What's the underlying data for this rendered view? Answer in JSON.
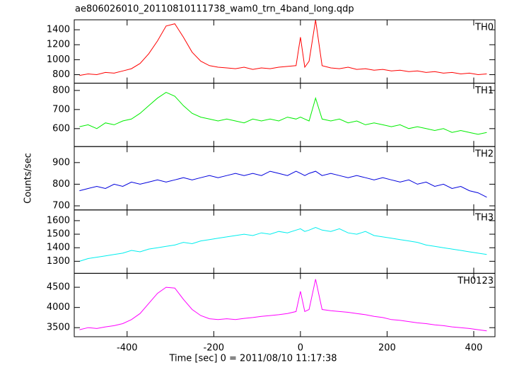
{
  "chart_data": {
    "type": "line",
    "title": "ae806026010_20110810111738_wam0_trn_4band_long.qdp",
    "x_label": "Time [sec] 0 = 2011/08/10 11:17:38",
    "y_label": "Counts/sec",
    "xlim": [
      -522,
      449
    ],
    "xticks": [
      -400,
      -200,
      0,
      200,
      400
    ],
    "x": [
      -510,
      -490,
      -470,
      -450,
      -430,
      -410,
      -390,
      -370,
      -350,
      -330,
      -310,
      -290,
      -270,
      -250,
      -230,
      -210,
      -190,
      -170,
      -150,
      -130,
      -110,
      -90,
      -70,
      -50,
      -30,
      -10,
      0,
      10,
      20,
      35,
      50,
      70,
      90,
      110,
      130,
      150,
      170,
      190,
      210,
      230,
      250,
      270,
      290,
      310,
      330,
      350,
      370,
      390,
      410,
      430
    ],
    "series": [
      {
        "name": "TH0",
        "color": "#ff0000",
        "ylim": [
          686,
          1533
        ],
        "yticks": [
          800,
          1000,
          1200,
          1400
        ],
        "values": [
          790,
          810,
          800,
          830,
          820,
          850,
          880,
          950,
          1080,
          1250,
          1450,
          1480,
          1300,
          1100,
          980,
          920,
          900,
          890,
          880,
          900,
          870,
          890,
          880,
          900,
          910,
          920,
          1300,
          900,
          980,
          1530,
          920,
          890,
          880,
          900,
          870,
          880,
          860,
          870,
          850,
          860,
          840,
          850,
          830,
          840,
          820,
          830,
          810,
          820,
          800,
          810
        ]
      },
      {
        "name": "TH1",
        "color": "#00ee00",
        "ylim": [
          506,
          838
        ],
        "yticks": [
          600,
          700,
          800
        ],
        "values": [
          610,
          620,
          600,
          630,
          620,
          640,
          650,
          680,
          720,
          760,
          790,
          770,
          720,
          680,
          660,
          650,
          640,
          650,
          640,
          630,
          650,
          640,
          650,
          640,
          660,
          650,
          660,
          650,
          640,
          760,
          650,
          640,
          650,
          630,
          640,
          620,
          630,
          620,
          610,
          620,
          600,
          610,
          600,
          590,
          600,
          580,
          590,
          580,
          570,
          580
        ]
      },
      {
        "name": "TH2",
        "color": "#0000dd",
        "ylim": [
          681,
          974
        ],
        "yticks": [
          700,
          800,
          900
        ],
        "values": [
          770,
          780,
          790,
          780,
          800,
          790,
          810,
          800,
          810,
          820,
          810,
          820,
          830,
          820,
          830,
          840,
          830,
          840,
          850,
          840,
          850,
          840,
          860,
          850,
          840,
          860,
          850,
          840,
          850,
          860,
          840,
          850,
          840,
          830,
          840,
          830,
          820,
          830,
          820,
          810,
          820,
          800,
          810,
          790,
          800,
          780,
          790,
          770,
          760,
          740
        ]
      },
      {
        "name": "TH3",
        "color": "#00eeee",
        "ylim": [
          1211,
          1679
        ],
        "yticks": [
          1300,
          1400,
          1500,
          1600
        ],
        "values": [
          1300,
          1320,
          1330,
          1340,
          1350,
          1360,
          1380,
          1370,
          1390,
          1400,
          1410,
          1420,
          1440,
          1430,
          1450,
          1460,
          1470,
          1480,
          1490,
          1500,
          1490,
          1510,
          1500,
          1520,
          1510,
          1530,
          1540,
          1520,
          1530,
          1550,
          1530,
          1520,
          1540,
          1510,
          1500,
          1520,
          1490,
          1480,
          1470,
          1460,
          1450,
          1440,
          1420,
          1410,
          1400,
          1390,
          1380,
          1370,
          1360,
          1350
        ]
      },
      {
        "name": "TH0123",
        "color": "#ff00ff",
        "ylim": [
          3276,
          4845
        ],
        "yticks": [
          3500,
          4000,
          4500
        ],
        "values": [
          3450,
          3500,
          3480,
          3520,
          3550,
          3600,
          3700,
          3850,
          4100,
          4350,
          4500,
          4480,
          4200,
          3950,
          3800,
          3720,
          3700,
          3720,
          3700,
          3730,
          3750,
          3780,
          3800,
          3820,
          3850,
          3900,
          4400,
          3900,
          3950,
          4700,
          3950,
          3920,
          3900,
          3880,
          3850,
          3820,
          3780,
          3750,
          3700,
          3680,
          3650,
          3620,
          3600,
          3570,
          3550,
          3520,
          3500,
          3480,
          3450,
          3420
        ]
      }
    ]
  }
}
